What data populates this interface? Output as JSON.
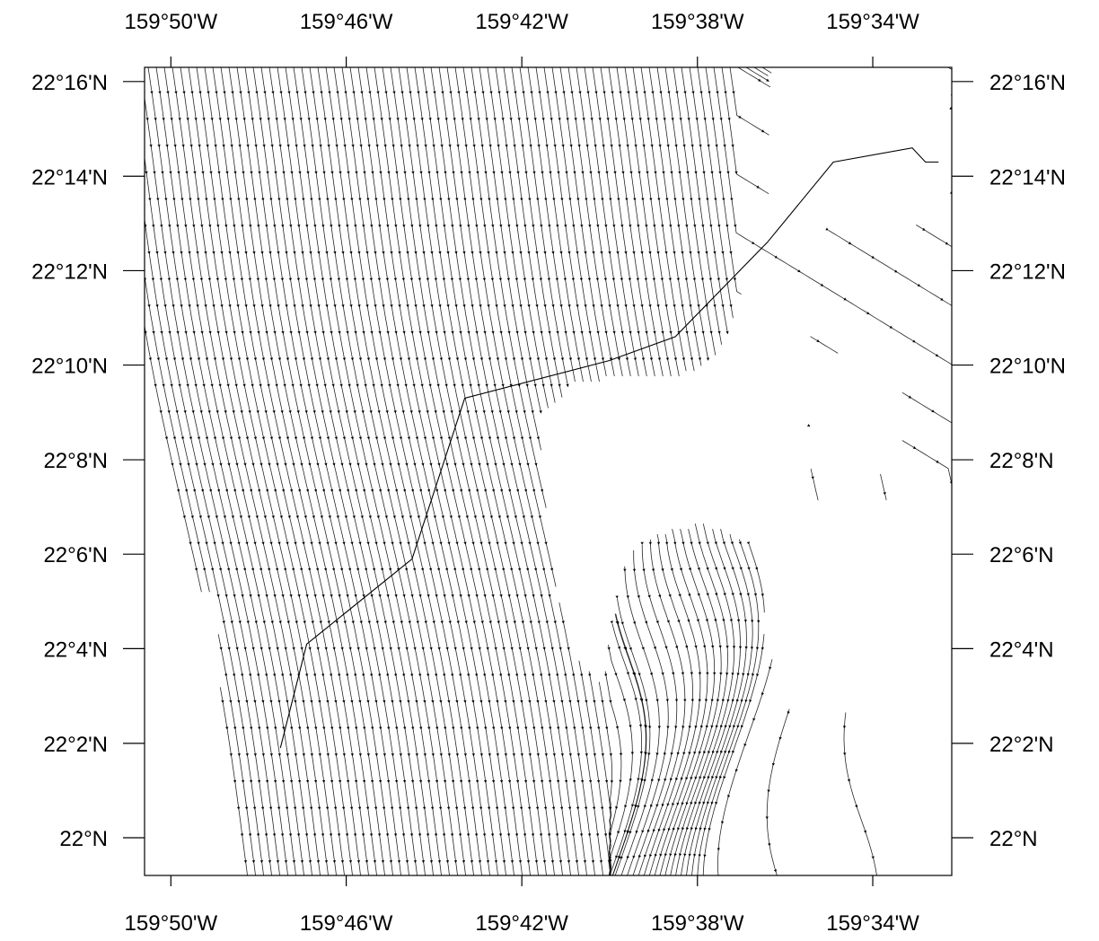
{
  "map": {
    "type": "streamline-map",
    "lon_ticks": [
      {
        "label": "159°50'W",
        "lon": -159.8333
      },
      {
        "label": "159°46'W",
        "lon": -159.7667
      },
      {
        "label": "159°42'W",
        "lon": -159.7
      },
      {
        "label": "159°38'W",
        "lon": -159.6333
      },
      {
        "label": "159°34'W",
        "lon": -159.5667
      }
    ],
    "lat_ticks": [
      {
        "label": "22°16'N",
        "lat": 22.2667
      },
      {
        "label": "22°14'N",
        "lat": 22.2333
      },
      {
        "label": "22°12'N",
        "lat": 22.2
      },
      {
        "label": "22°10'N",
        "lat": 22.1667
      },
      {
        "label": "22°8'N",
        "lat": 22.1333
      },
      {
        "label": "22°6'N",
        "lat": 22.1
      },
      {
        "label": "22°4'N",
        "lat": 22.0667
      },
      {
        "label": "22°2'N",
        "lat": 22.0333
      },
      {
        "label": "22°N",
        "lat": 22.0
      }
    ],
    "lon_range": [
      -159.8433,
      -159.5367
    ],
    "lat_range": [
      21.9867,
      22.2717
    ],
    "track": [
      [
        -159.5417,
        22.2383
      ],
      [
        -159.5467,
        22.2383
      ],
      [
        -159.5517,
        22.2433
      ],
      [
        -159.5817,
        22.2383
      ],
      [
        -159.6067,
        22.21
      ],
      [
        -159.6417,
        22.1767
      ],
      [
        -159.6667,
        22.1683
      ],
      [
        -159.7217,
        22.155
      ],
      [
        -159.7417,
        22.0983
      ],
      [
        -159.7817,
        22.0683
      ],
      [
        -159.7917,
        22.0317
      ]
    ],
    "land_shading": "none"
  }
}
